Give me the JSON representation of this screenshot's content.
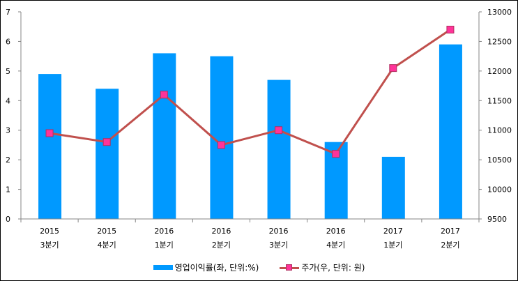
{
  "chart_data": {
    "type": "bar+line",
    "categories": [
      [
        "2015",
        "3분기"
      ],
      [
        "2015",
        "4분기"
      ],
      [
        "2016",
        "1분기"
      ],
      [
        "2016",
        "2분기"
      ],
      [
        "2016",
        "3분기"
      ],
      [
        "2016",
        "4분기"
      ],
      [
        "2017",
        "1분기"
      ],
      [
        "2017",
        "2분기"
      ]
    ],
    "series": [
      {
        "name": "영업이익률(좌, 단위:%)",
        "type": "bar",
        "axis": "left",
        "color": "#0099ff",
        "values": [
          4.9,
          4.4,
          5.6,
          5.5,
          4.7,
          2.6,
          2.1,
          5.9
        ]
      },
      {
        "name": "주가(우, 단위: 원)",
        "type": "line",
        "axis": "right",
        "color": "#c0504d",
        "marker_color": "#ff3399",
        "values": [
          10950,
          10800,
          11600,
          10750,
          11000,
          10600,
          12050,
          12700
        ]
      }
    ],
    "left_axis": {
      "min": 0,
      "max": 7,
      "ticks": [
        "0",
        "1",
        "2",
        "3",
        "4",
        "5",
        "6",
        "7"
      ]
    },
    "right_axis": {
      "min": 9500,
      "max": 13000,
      "ticks": [
        "9500",
        "10000",
        "10500",
        "11000",
        "11500",
        "12000",
        "12500",
        "13000"
      ]
    },
    "grid": false,
    "legend_position": "bottom"
  }
}
